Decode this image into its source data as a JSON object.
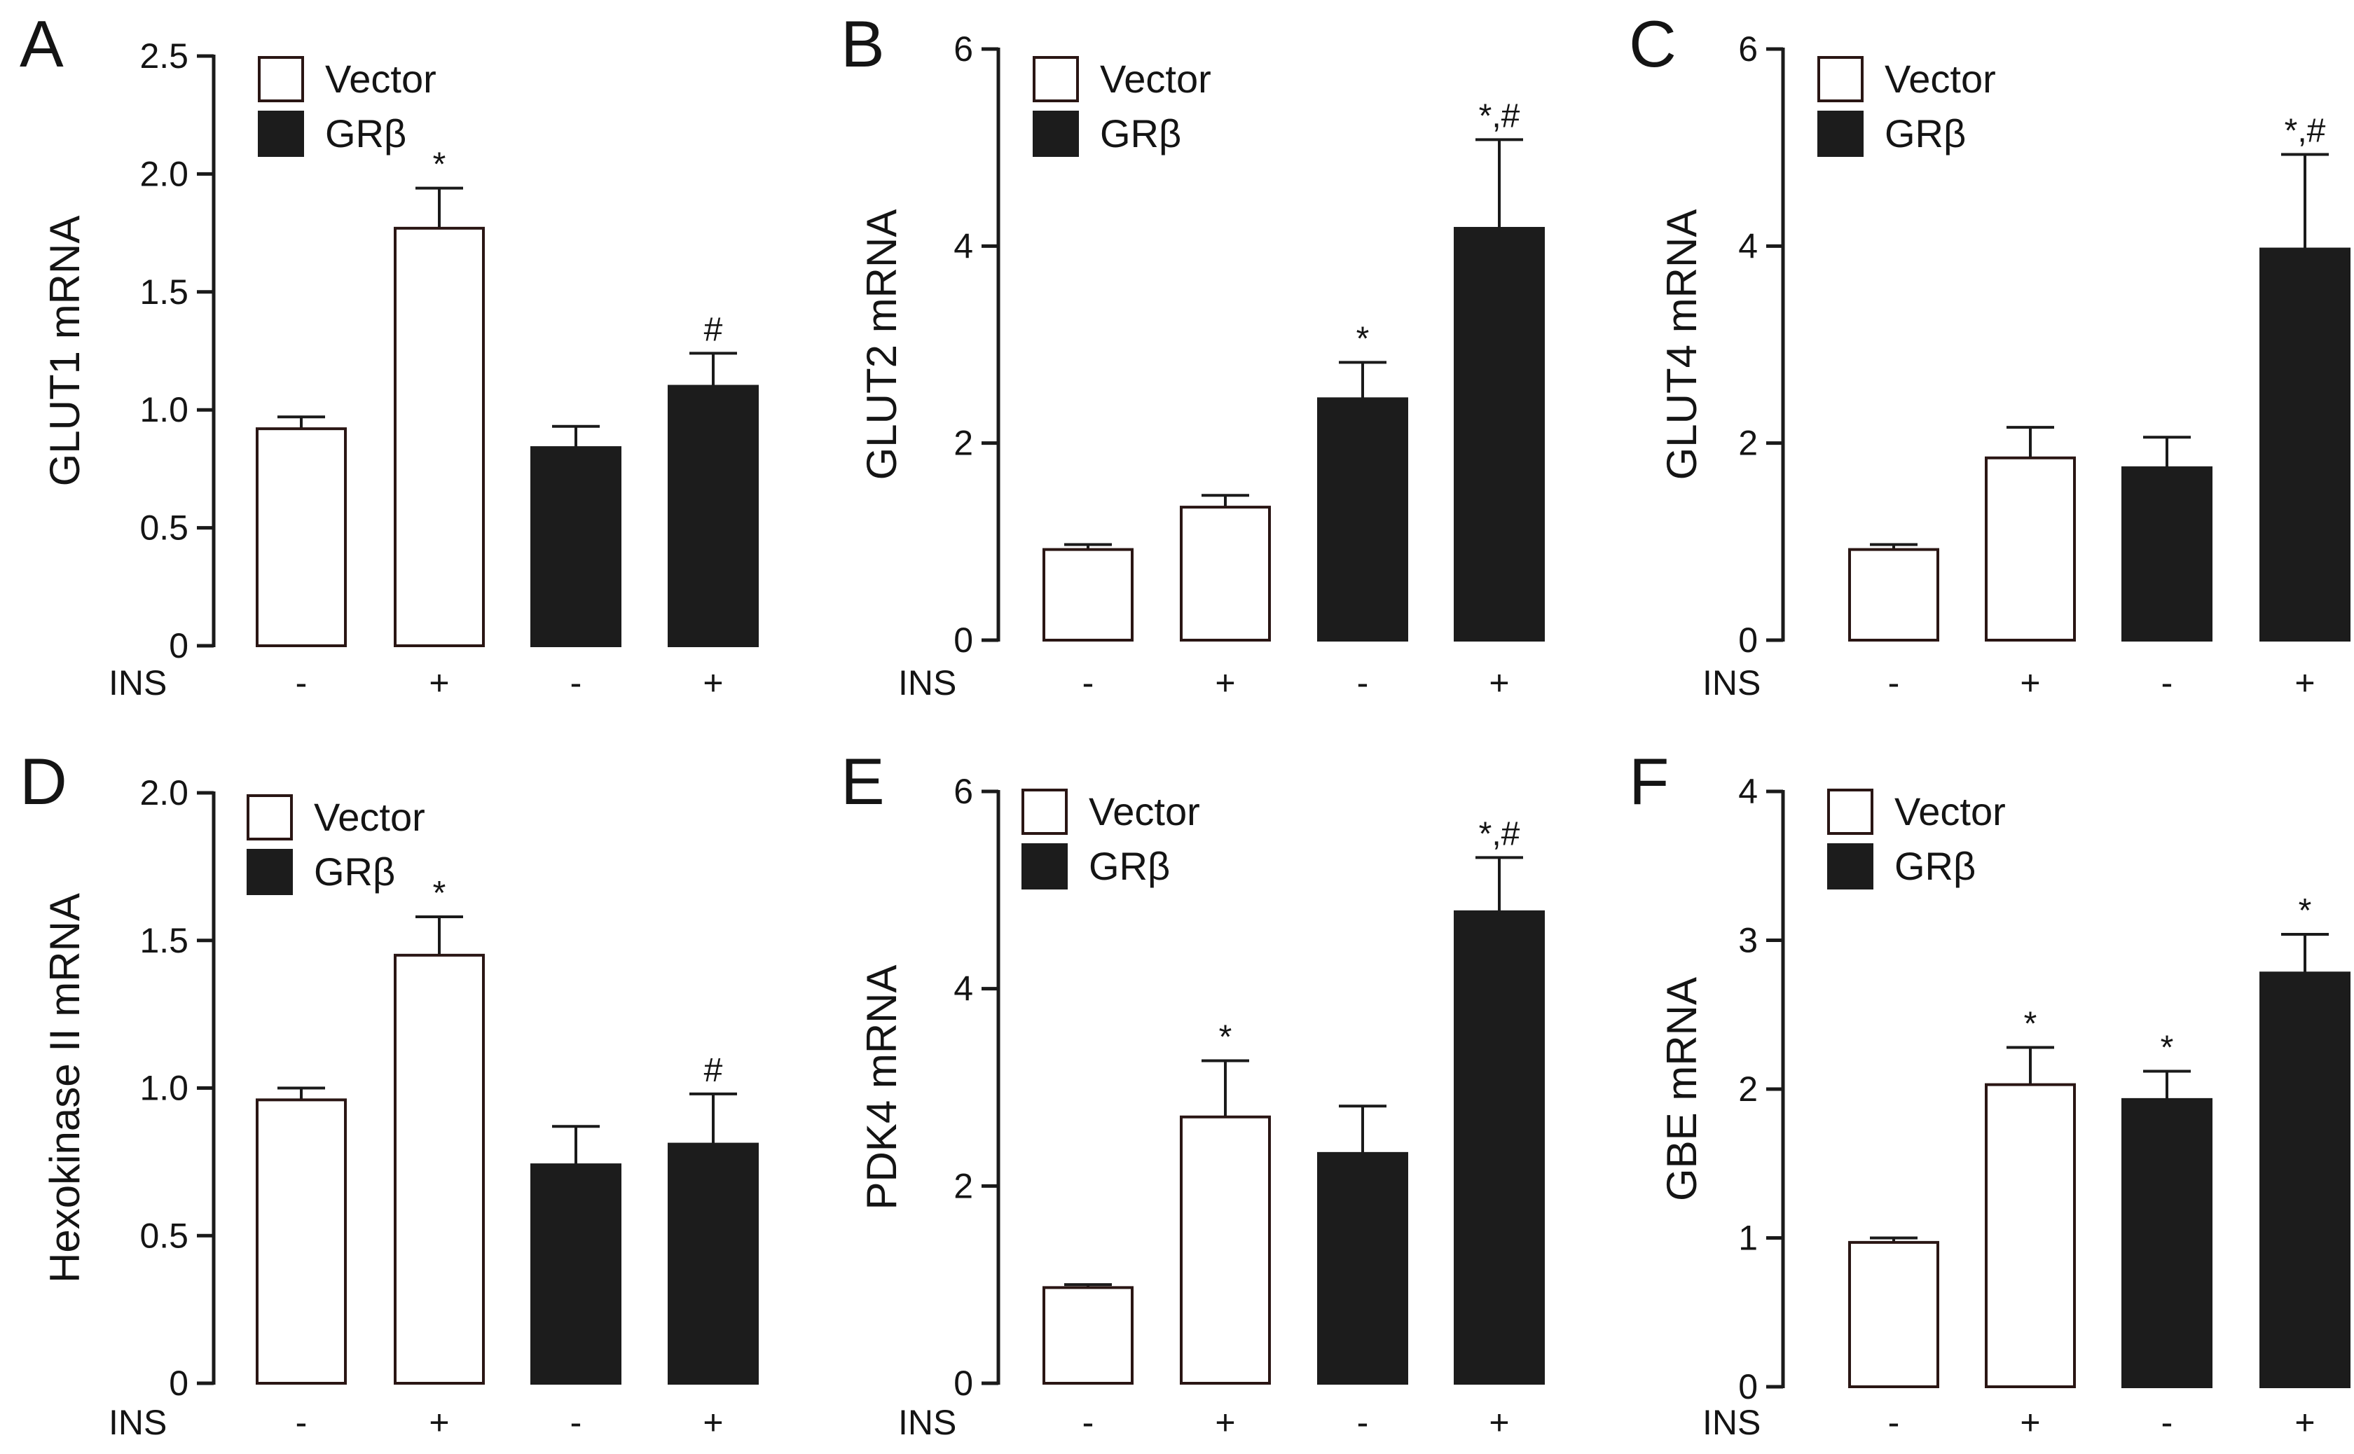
{
  "colors": {
    "vector_fill": "#ffffff",
    "vector_edge": "#2a1614",
    "gr_fill": "#1c1c1c",
    "axis": "#1a1a1a",
    "text": "#141414"
  },
  "chart_data": [
    {
      "panel": "A",
      "type": "bar",
      "ylabel": "GLUT1 mRNA",
      "ylim": [
        0,
        2.5
      ],
      "yticks": [
        "0",
        "0.5",
        "1.0",
        "1.5",
        "2.0",
        "2.5"
      ],
      "legend": [
        "Vector",
        "GRβ"
      ],
      "x_label": "INS",
      "categories": [
        "-",
        "+",
        "-",
        "+"
      ],
      "groups": [
        "Vector",
        "Vector",
        "GRβ",
        "GRβ"
      ],
      "values": [
        0.92,
        1.77,
        0.84,
        1.1
      ],
      "errors": [
        0.05,
        0.17,
        0.09,
        0.14
      ],
      "annotations": [
        "",
        "*",
        "",
        "#"
      ]
    },
    {
      "panel": "B",
      "type": "bar",
      "ylabel": "GLUT2 mRNA",
      "ylim": [
        0,
        6
      ],
      "yticks": [
        "0",
        "2",
        "4",
        "6"
      ],
      "legend": [
        "Vector",
        "GRβ"
      ],
      "x_label": "INS",
      "categories": [
        "-",
        "+",
        "-",
        "+"
      ],
      "groups": [
        "Vector",
        "Vector",
        "GRβ",
        "GRβ"
      ],
      "values": [
        0.92,
        1.35,
        2.45,
        4.18
      ],
      "errors": [
        0.05,
        0.12,
        0.37,
        0.9
      ],
      "annotations": [
        "",
        "",
        "*",
        "*,#"
      ]
    },
    {
      "panel": "C",
      "type": "bar",
      "ylabel": "GLUT4  mRNA",
      "ylim": [
        0,
        6
      ],
      "yticks": [
        "0",
        "2",
        "4",
        "6"
      ],
      "legend": [
        "Vector",
        "GRβ"
      ],
      "x_label": "INS",
      "categories": [
        "-",
        "+",
        "-",
        "+"
      ],
      "groups": [
        "Vector",
        "Vector",
        "GRβ",
        "GRβ"
      ],
      "values": [
        0.92,
        1.85,
        1.75,
        3.97
      ],
      "errors": [
        0.05,
        0.31,
        0.31,
        0.96
      ],
      "annotations": [
        "",
        "",
        "",
        "*,#"
      ]
    },
    {
      "panel": "D",
      "type": "bar",
      "ylabel": "Hexokinase II mRNA",
      "ylim": [
        0,
        2.0
      ],
      "yticks": [
        "0",
        "0.5",
        "1.0",
        "1.5",
        "2.0"
      ],
      "legend": [
        "Vector",
        "GRβ"
      ],
      "x_label": "INS",
      "categories": [
        "-",
        "+",
        "-",
        "+"
      ],
      "groups": [
        "Vector",
        "Vector",
        "GRβ",
        "GRβ"
      ],
      "values": [
        0.96,
        1.45,
        0.74,
        0.81
      ],
      "errors": [
        0.04,
        0.13,
        0.13,
        0.17
      ],
      "annotations": [
        "",
        "*",
        "",
        "#"
      ]
    },
    {
      "panel": "E",
      "type": "bar",
      "ylabel": "PDK4 mRNA",
      "ylim": [
        0,
        6
      ],
      "yticks": [
        "0",
        "2",
        "4",
        "6"
      ],
      "legend": [
        "Vector",
        "GRβ"
      ],
      "x_label": "INS",
      "categories": [
        "-",
        "+",
        "-",
        "+"
      ],
      "groups": [
        "Vector",
        "Vector",
        "GRβ",
        "GRβ"
      ],
      "values": [
        0.97,
        2.7,
        2.33,
        4.78
      ],
      "errors": [
        0.03,
        0.57,
        0.48,
        0.55
      ],
      "annotations": [
        "",
        "*",
        "",
        "*,#"
      ]
    },
    {
      "panel": "F",
      "type": "bar",
      "ylabel": "GBE mRNA",
      "ylim": [
        0,
        4
      ],
      "yticks": [
        "0",
        "1",
        "2",
        "3",
        "4"
      ],
      "legend": [
        "Vector",
        "GRβ"
      ],
      "x_label": "INS",
      "categories": [
        "-",
        "+",
        "-",
        "+"
      ],
      "groups": [
        "Vector",
        "Vector",
        "GRβ",
        "GRβ"
      ],
      "values": [
        0.97,
        2.03,
        1.93,
        2.78
      ],
      "errors": [
        0.03,
        0.25,
        0.19,
        0.26
      ],
      "annotations": [
        "",
        "*",
        "*",
        "*"
      ]
    }
  ]
}
